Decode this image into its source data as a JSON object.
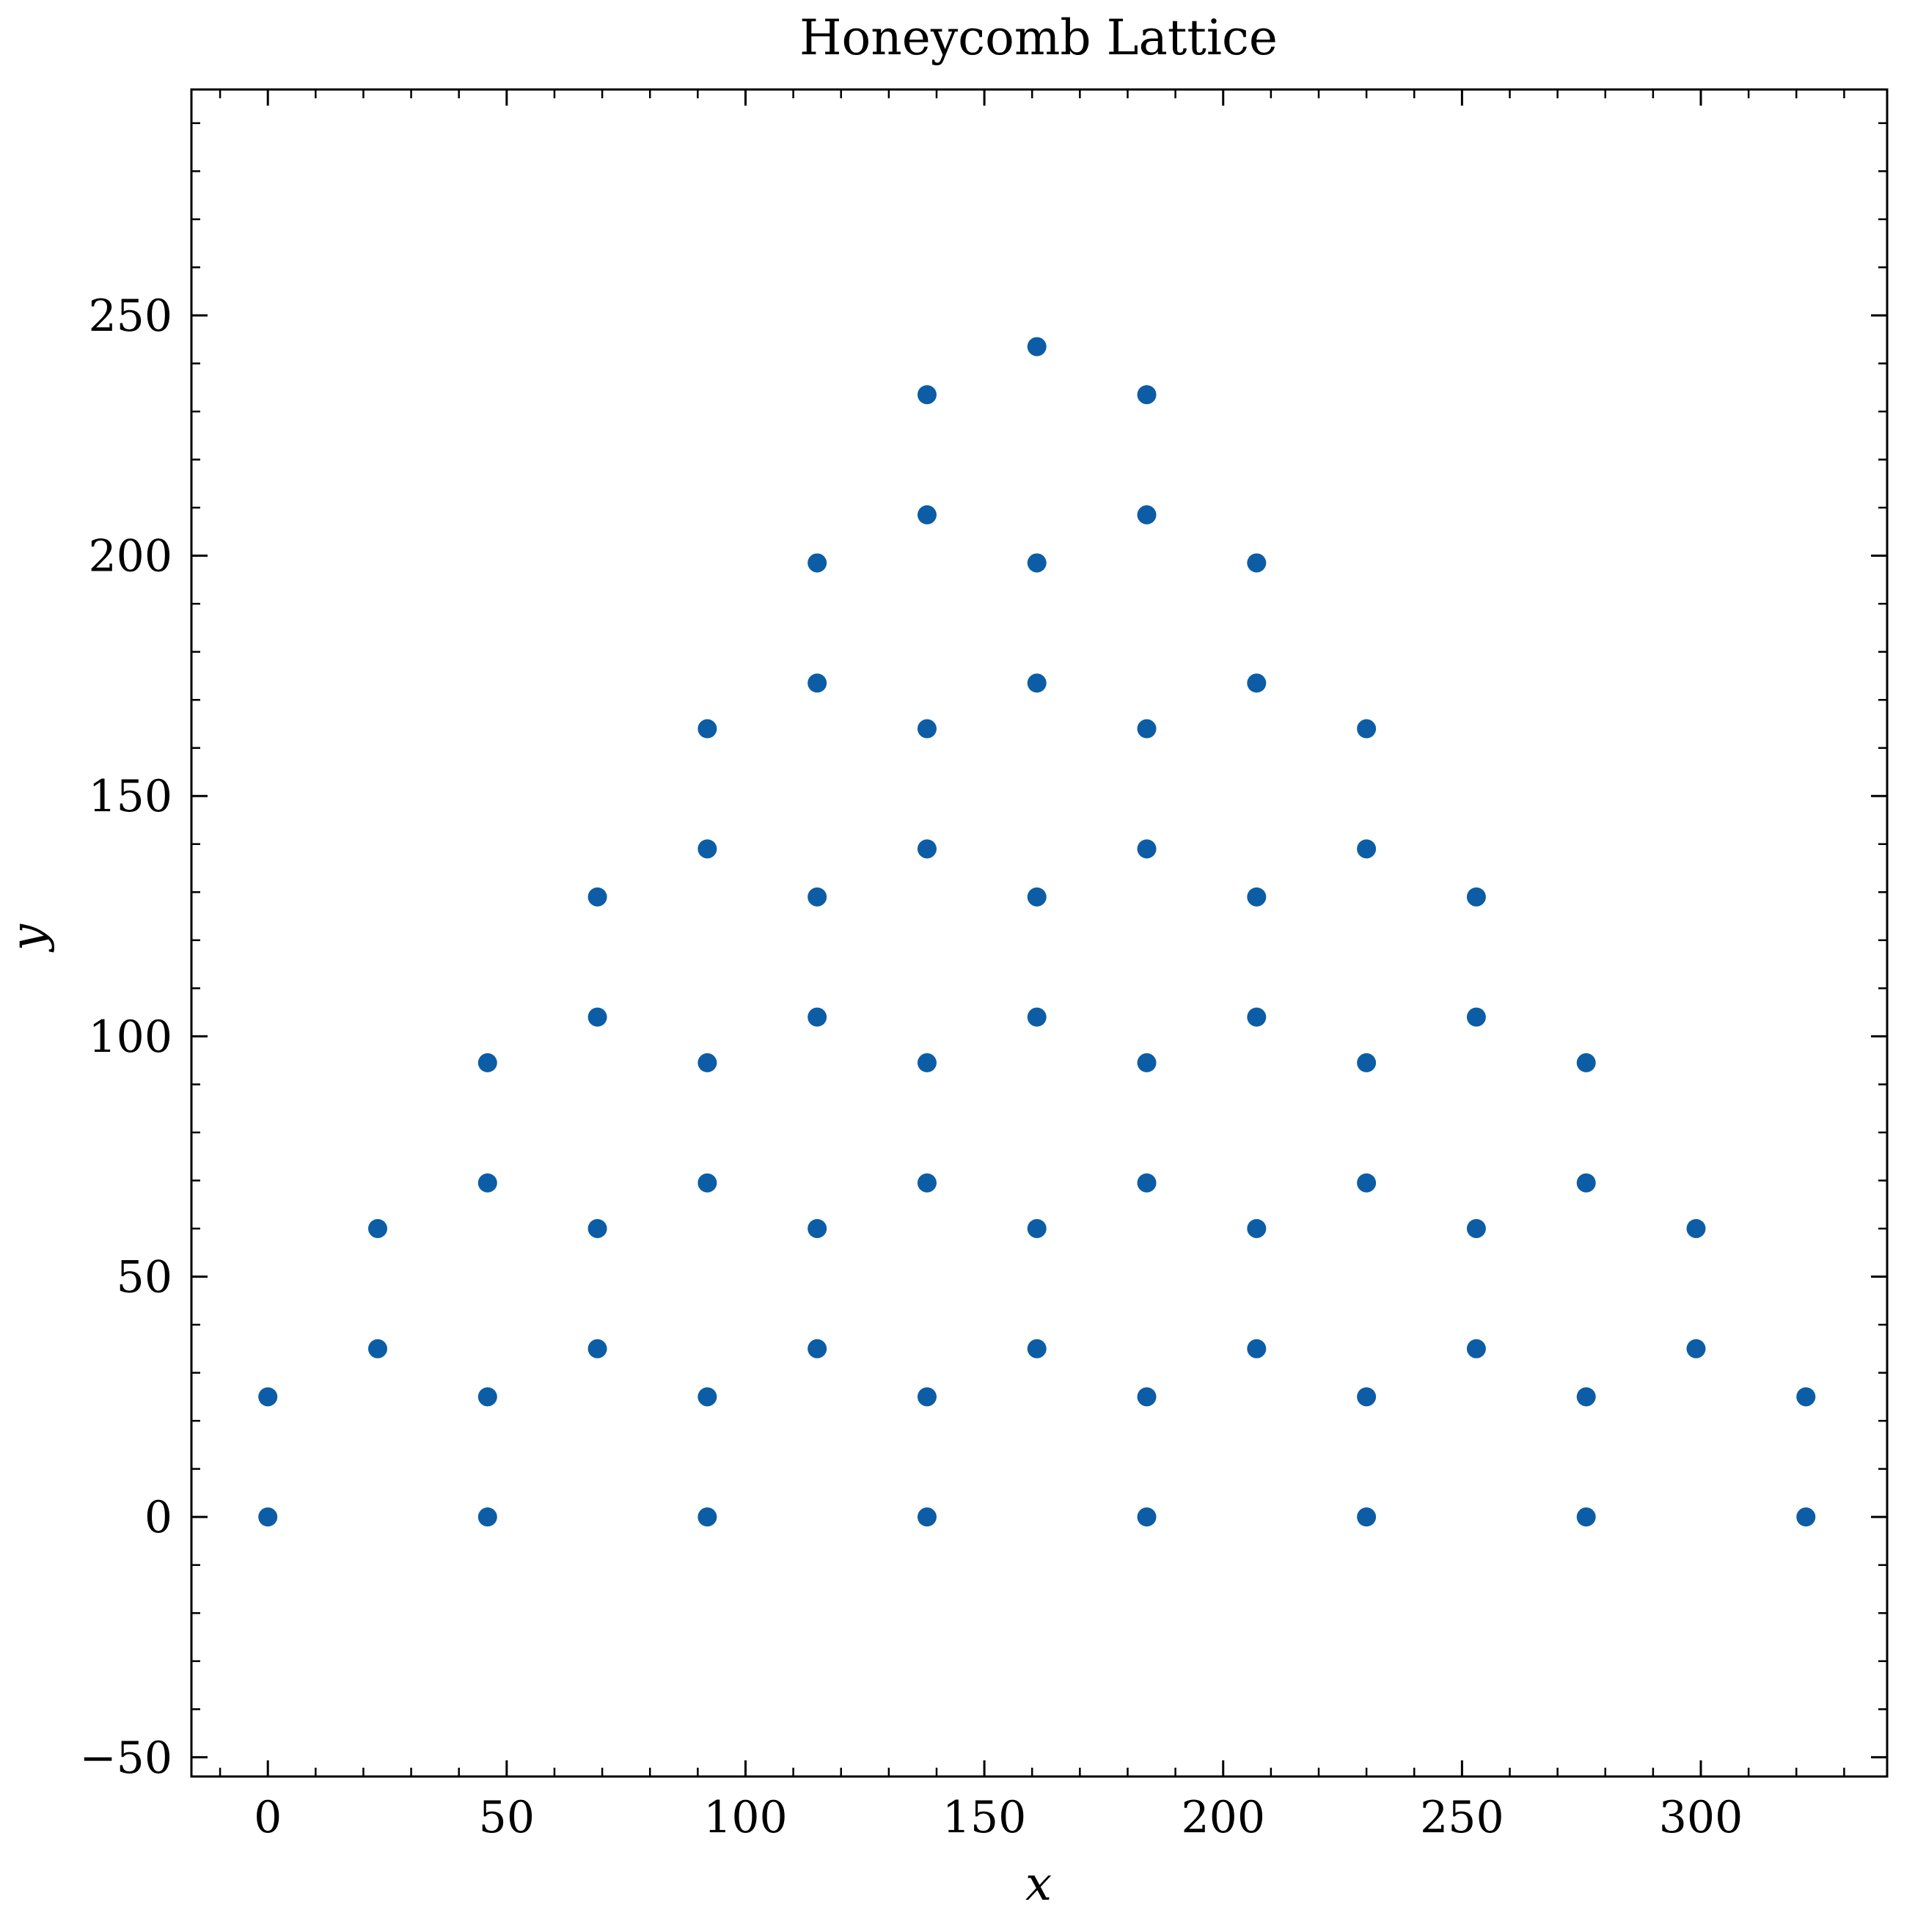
{
  "chart_data": {
    "type": "scatter",
    "title": "Honeycomb Lattice",
    "xlabel": "x",
    "ylabel": "y",
    "xlim": [
      -16,
      339
    ],
    "ylim": [
      -54,
      297
    ],
    "xticks": [
      0,
      50,
      100,
      150,
      200,
      250,
      300
    ],
    "xtick_labels": [
      "0",
      "50",
      "100",
      "150",
      "200",
      "250",
      "300"
    ],
    "yticks": [
      -50,
      0,
      50,
      100,
      150,
      200,
      250
    ],
    "ytick_labels": [
      "−50",
      "0",
      "50",
      "100",
      "150",
      "200",
      "250"
    ],
    "x_minor_step": 10,
    "y_minor_step": 10,
    "grid": false,
    "marker_color": "#0C5DA5",
    "series": [
      {
        "points": [
          [
            0,
            0
          ],
          [
            0,
            25
          ],
          [
            23,
            35
          ],
          [
            23,
            60
          ],
          [
            46,
            0
          ],
          [
            46,
            25
          ],
          [
            46,
            69.5
          ],
          [
            46,
            94.5
          ],
          [
            69,
            35
          ],
          [
            69,
            60
          ],
          [
            69,
            104
          ],
          [
            69,
            129
          ],
          [
            92,
            0
          ],
          [
            92,
            25
          ],
          [
            92,
            69.5
          ],
          [
            92,
            94.5
          ],
          [
            92,
            139
          ],
          [
            92,
            164
          ],
          [
            115,
            35
          ],
          [
            115,
            60
          ],
          [
            115,
            104
          ],
          [
            115,
            129
          ],
          [
            115,
            173.5
          ],
          [
            115,
            198.5
          ],
          [
            138,
            0
          ],
          [
            138,
            25
          ],
          [
            138,
            69.5
          ],
          [
            138,
            94.5
          ],
          [
            138,
            139
          ],
          [
            138,
            164
          ],
          [
            138,
            208.5
          ],
          [
            138,
            233.5
          ],
          [
            161,
            35
          ],
          [
            161,
            60
          ],
          [
            161,
            104
          ],
          [
            161,
            129
          ],
          [
            161,
            173.5
          ],
          [
            161,
            198.5
          ],
          [
            161,
            243.5
          ],
          [
            184,
            0
          ],
          [
            184,
            25
          ],
          [
            184,
            69.5
          ],
          [
            184,
            94.5
          ],
          [
            184,
            139
          ],
          [
            184,
            164
          ],
          [
            184,
            208.5
          ],
          [
            184,
            233.5
          ],
          [
            207,
            35
          ],
          [
            207,
            60
          ],
          [
            207,
            104
          ],
          [
            207,
            129
          ],
          [
            207,
            173.5
          ],
          [
            207,
            198.5
          ],
          [
            230,
            0
          ],
          [
            230,
            25
          ],
          [
            230,
            69.5
          ],
          [
            230,
            94.5
          ],
          [
            230,
            139
          ],
          [
            230,
            164
          ],
          [
            253,
            35
          ],
          [
            253,
            60
          ],
          [
            253,
            104
          ],
          [
            253,
            129
          ],
          [
            276,
            0
          ],
          [
            276,
            25
          ],
          [
            276,
            69.5
          ],
          [
            276,
            94.5
          ],
          [
            299,
            35
          ],
          [
            299,
            60
          ],
          [
            322,
            0
          ],
          [
            322,
            25
          ]
        ]
      }
    ]
  }
}
